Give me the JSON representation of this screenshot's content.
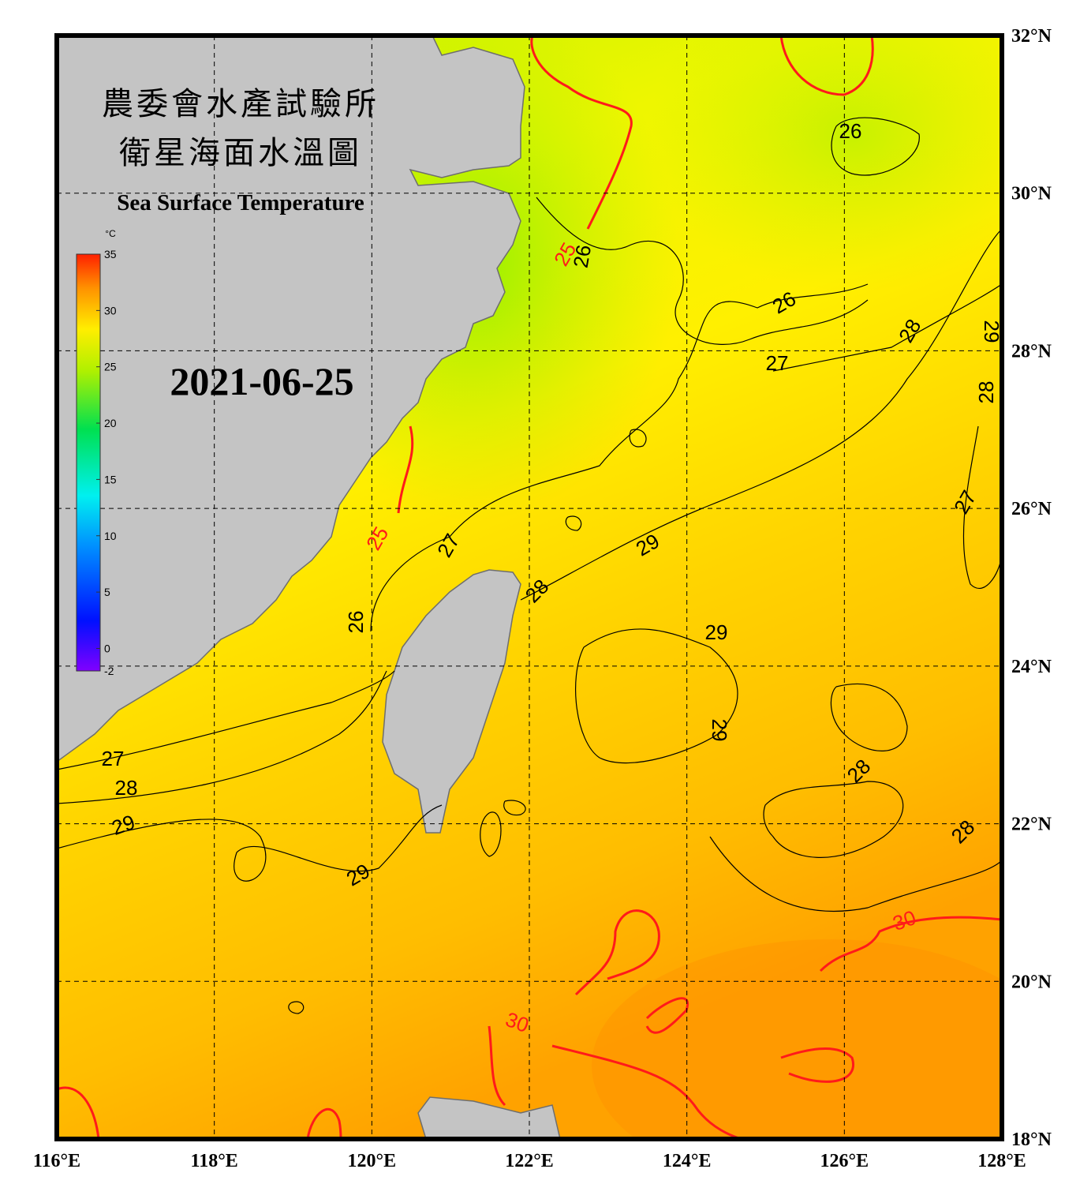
{
  "header": {
    "title_zh": "農委會水產試驗所",
    "subtitle_zh": "衛星海面水溫圖",
    "title_en": "Sea Surface Temperature",
    "date": "2021-06-25"
  },
  "colorbar": {
    "unit": "°C",
    "range": [
      -2,
      35
    ],
    "ticks": [
      35,
      30,
      25,
      20,
      15,
      10,
      5,
      0,
      -2
    ]
  },
  "map": {
    "lon_range": [
      116,
      128
    ],
    "lat_range": [
      18,
      32
    ],
    "lon_ticks": [
      {
        "value": 116,
        "label": "116°E"
      },
      {
        "value": 118,
        "label": "118°E"
      },
      {
        "value": 120,
        "label": "120°E"
      },
      {
        "value": 122,
        "label": "122°E"
      },
      {
        "value": 124,
        "label": "124°E"
      },
      {
        "value": 126,
        "label": "126°E"
      },
      {
        "value": 128,
        "label": "128°E"
      }
    ],
    "lat_ticks": [
      {
        "value": 32,
        "label": "32°N"
      },
      {
        "value": 30,
        "label": "30°N"
      },
      {
        "value": 28,
        "label": "28°N"
      },
      {
        "value": 26,
        "label": "26°N"
      },
      {
        "value": 24,
        "label": "24°N"
      },
      {
        "value": 22,
        "label": "22°N"
      },
      {
        "value": 20,
        "label": "20°N"
      },
      {
        "value": 18,
        "label": "18°N"
      }
    ]
  },
  "contour_labels": [
    "26",
    "26",
    "27",
    "28",
    "29",
    "28",
    "27",
    "29",
    "29",
    "28",
    "27",
    "26",
    "25",
    "25",
    "26",
    "29",
    "28",
    "28",
    "29",
    "29",
    "28",
    "27",
    "30",
    "30"
  ]
}
